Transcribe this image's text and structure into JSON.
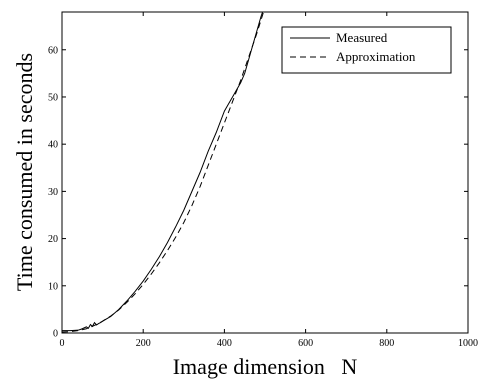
{
  "chart_data": {
    "type": "line",
    "xlabel": "Image dimension   N",
    "ylabel": "Time consumed in seconds",
    "xlim": [
      0,
      1000
    ],
    "ylim": [
      0,
      68
    ],
    "xticks": [
      0,
      200,
      400,
      600,
      800,
      1000
    ],
    "yticks": [
      0,
      10,
      20,
      30,
      40,
      50,
      60
    ],
    "grid": false,
    "legend_position": "top-right",
    "series": [
      {
        "name": "Measured",
        "style": "solid",
        "x": [
          0,
          20,
          40,
          50,
          60,
          65,
          70,
          75,
          80,
          85,
          90,
          95,
          100,
          120,
          140,
          160,
          180,
          200,
          220,
          240,
          260,
          280,
          300,
          320,
          340,
          360,
          380,
          400,
          410,
          420,
          440,
          450,
          460,
          470,
          480,
          490,
          500
        ],
        "y": [
          0.5,
          0.5,
          0.6,
          0.9,
          1.3,
          1.0,
          1.8,
          1.4,
          2.2,
          1.7,
          2.0,
          2.2,
          2.5,
          3.5,
          5.0,
          6.8,
          8.8,
          11.0,
          13.5,
          16.2,
          19.2,
          22.5,
          26.0,
          30.0,
          34.0,
          38.5,
          42.5,
          47.0,
          48.5,
          50.0,
          53.0,
          55.0,
          58.0,
          61.0,
          64.0,
          67.0,
          69.5
        ]
      },
      {
        "name": "Approximation",
        "style": "dashed",
        "x": [
          0,
          20,
          40,
          60,
          80,
          100,
          120,
          140,
          160,
          180,
          200,
          220,
          240,
          260,
          280,
          300,
          320,
          340,
          360,
          380,
          400,
          420,
          440,
          460,
          480,
          500
        ],
        "y": [
          0.2,
          0.3,
          0.5,
          0.9,
          1.6,
          2.5,
          3.6,
          4.9,
          6.5,
          8.3,
          10.3,
          12.5,
          14.9,
          17.5,
          20.3,
          23.4,
          27.0,
          31.0,
          35.5,
          40.0,
          44.5,
          49.0,
          53.5,
          58.5,
          63.5,
          69.0
        ]
      }
    ]
  }
}
